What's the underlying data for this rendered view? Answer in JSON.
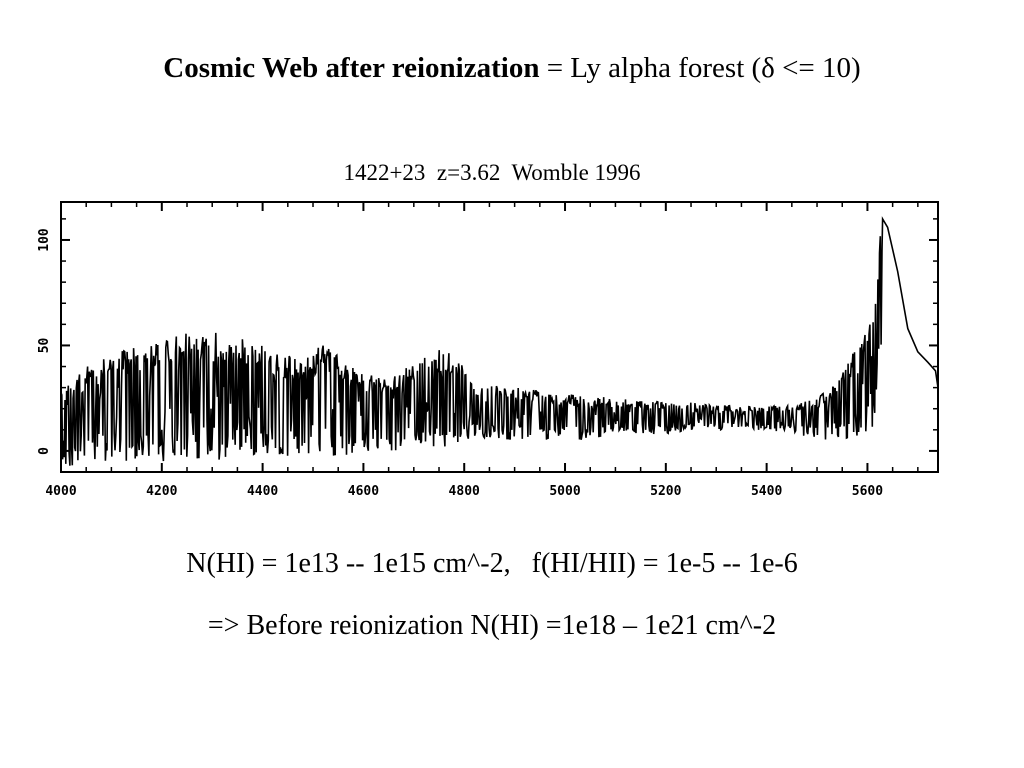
{
  "slide": {
    "title_bold": "Cosmic Web after reionization",
    "title_rest": " = Ly alpha forest (δ <= 10)",
    "line1": "N(HI) = 1e13 -- 1e15 cm^-2,   f(HI/HII) = 1e-5 -- 1e-6",
    "line2": "=> Before reionization N(HI) =1e18 – 1e21 cm^-2"
  },
  "chart_data": {
    "type": "line",
    "title": "1422+23  z=3.62  Womble 1996",
    "xlabel": "",
    "ylabel": "",
    "xlim": [
      4000,
      5740
    ],
    "ylim": [
      -10,
      118
    ],
    "x_ticks": [
      4000,
      4200,
      4400,
      4600,
      4800,
      5000,
      5200,
      5400,
      5600
    ],
    "y_ticks": [
      0,
      50,
      100
    ],
    "grid": false,
    "series": [
      {
        "color": "#000000",
        "envelope": {
          "x": [
            4000,
            4050,
            4100,
            4150,
            4200,
            4250,
            4300,
            4350,
            4400,
            4450,
            4500,
            4520,
            4560,
            4600,
            4650,
            4700,
            4750,
            4790,
            4800,
            4820,
            4850,
            4900,
            4950,
            5000,
            5050,
            5100,
            5150,
            5200,
            5250,
            5300,
            5350,
            5400,
            5450,
            5500,
            5530,
            5560,
            5590,
            5610,
            5620,
            5625,
            5630
          ],
          "high": [
            28,
            40,
            45,
            52,
            55,
            58,
            57,
            55,
            50,
            45,
            48,
            50,
            44,
            37,
            35,
            42,
            48,
            46,
            38,
            33,
            32,
            30,
            29,
            27,
            26,
            25,
            24,
            24,
            23,
            22,
            21,
            21,
            22,
            25,
            32,
            42,
            55,
            70,
            88,
            103,
            110
          ],
          "low": [
            -8,
            -8,
            -5,
            -5,
            -5,
            -5,
            -5,
            -3,
            -3,
            -3,
            -3,
            -3,
            -3,
            0,
            0,
            0,
            2,
            2,
            5,
            5,
            5,
            5,
            5,
            5,
            5,
            8,
            8,
            8,
            10,
            10,
            10,
            10,
            8,
            5,
            5,
            5,
            5,
            10,
            25,
            40,
            45
          ]
        },
        "emission_tail": {
          "x": [
            5630,
            5640,
            5660,
            5680,
            5700,
            5720,
            5735,
            5740
          ],
          "y": [
            110,
            106,
            85,
            58,
            47,
            42,
            38,
            30
          ]
        }
      }
    ]
  }
}
